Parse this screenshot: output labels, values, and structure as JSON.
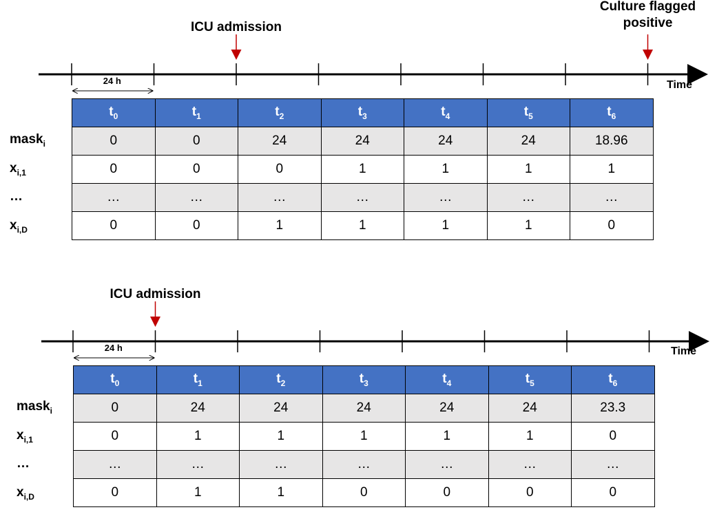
{
  "panels": [
    {
      "markers": [
        {
          "label": "ICU admission",
          "at_tick": 2
        },
        {
          "label": "Culture flagged positive",
          "label_lines": [
            "Culture flagged",
            "positive"
          ],
          "at_tick": 7
        }
      ],
      "axis_label": "Time",
      "duration_label": "24 h",
      "columns": [
        "t0",
        "t1",
        "t2",
        "t3",
        "t4",
        "t5",
        "t6"
      ],
      "rows": [
        {
          "name": "mask_i",
          "base": "mask",
          "sub": "i",
          "values": [
            "0",
            "0",
            "24",
            "24",
            "24",
            "24",
            "18.96"
          ]
        },
        {
          "name": "x_i,1",
          "base": "x",
          "sub": "i,1",
          "values": [
            "0",
            "0",
            "0",
            "1",
            "1",
            "1",
            "1"
          ]
        },
        {
          "name": "...",
          "base": "…",
          "sub": "",
          "values": [
            "…",
            "…",
            "…",
            "…",
            "…",
            "…",
            "…"
          ]
        },
        {
          "name": "x_i,D",
          "base": "x",
          "sub": "i,D",
          "values": [
            "0",
            "0",
            "1",
            "1",
            "1",
            "1",
            "0"
          ]
        }
      ]
    },
    {
      "markers": [
        {
          "label": "ICU admission",
          "at_tick": 1
        }
      ],
      "axis_label": "Time",
      "duration_label": "24 h",
      "columns": [
        "t0",
        "t1",
        "t2",
        "t3",
        "t4",
        "t5",
        "t6"
      ],
      "rows": [
        {
          "name": "mask_i",
          "base": "mask",
          "sub": "i",
          "values": [
            "0",
            "24",
            "24",
            "24",
            "24",
            "24",
            "23.3"
          ]
        },
        {
          "name": "x_i,1",
          "base": "x",
          "sub": "i,1",
          "values": [
            "0",
            "1",
            "1",
            "1",
            "1",
            "1",
            "0"
          ]
        },
        {
          "name": "...",
          "base": "…",
          "sub": "",
          "values": [
            "…",
            "…",
            "…",
            "…",
            "…",
            "…",
            "…"
          ]
        },
        {
          "name": "x_i,D",
          "base": "x",
          "sub": "i,D",
          "values": [
            "0",
            "1",
            "1",
            "0",
            "0",
            "0",
            "0"
          ]
        }
      ]
    }
  ],
  "colors": {
    "header": "#4472c4",
    "shade": "#e7e6e6",
    "arrow": "#c00000"
  }
}
